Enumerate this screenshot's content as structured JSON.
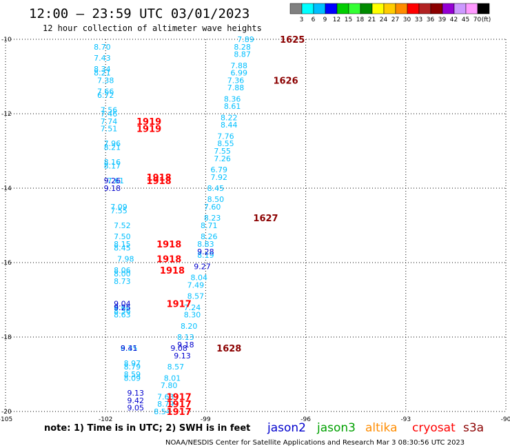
{
  "header": {
    "title": "12:00 – 23:59 UTC 03/01/2023",
    "subtitle": "12 hour collection of altimeter wave heights"
  },
  "colorbar": {
    "colors": [
      "#808080",
      "#00ffff",
      "#00bfff",
      "#0000ff",
      "#00cd00",
      "#33ff33",
      "#008b00",
      "#ffff00",
      "#ffcc00",
      "#ff8c00",
      "#ff0000",
      "#b22222",
      "#8b0000",
      "#9400d3",
      "#cc99ff",
      "#ff99ff",
      "#000000"
    ],
    "labels": [
      "3",
      "6",
      "9",
      "12",
      "15",
      "18",
      "21",
      "24",
      "27",
      "30",
      "33",
      "36",
      "39",
      "42",
      "45",
      "70",
      "(ft)"
    ]
  },
  "footer": {
    "note": "note:  1) Time is in UTC; 2) SWH is in feet",
    "credit": "NOAA/NESDIS Center for Satellite Applications and Research   Mar  3 08:30:56 UTC 2023"
  },
  "satellites": [
    {
      "name": "jason2",
      "color": "#0000cd"
    },
    {
      "name": "jason3",
      "color": "#00a000"
    },
    {
      "name": "altika",
      "color": "#ff8c00"
    },
    {
      "name": "cryosat",
      "color": "#ff0000"
    },
    {
      "name": "s3a",
      "color": "#8b0000"
    }
  ],
  "chart_data": {
    "type": "scatter",
    "title": "12:00 – 23:59 UTC 03/01/2023",
    "subtitle": "12 hour collection of altimeter wave heights",
    "xlim": [
      -105,
      -90
    ],
    "ylim": [
      -20,
      -10
    ],
    "x_ticks": [
      "-105",
      "-102",
      "-99",
      "-96",
      "-93",
      "-90"
    ],
    "y_ticks": [
      "-10",
      "-12",
      "-14",
      "-16",
      "-18",
      "-20"
    ],
    "grid": true,
    "series": [
      {
        "name": "s3a",
        "color": "#00bfff",
        "points": [
          [
            -97.8,
            -10.0,
            "7.89"
          ],
          [
            -97.9,
            -10.2,
            "8.28"
          ],
          [
            -97.9,
            -10.4,
            "8.87"
          ],
          [
            -98.0,
            -10.7,
            "7.88"
          ],
          [
            -98.0,
            -10.9,
            "6.99"
          ],
          [
            -98.1,
            -11.1,
            "7.36"
          ],
          [
            -98.1,
            -11.3,
            "7.88"
          ],
          [
            -98.2,
            -11.6,
            "8.36"
          ],
          [
            -98.2,
            -11.8,
            "8.61"
          ],
          [
            -98.3,
            -12.1,
            "8.22"
          ],
          [
            -98.3,
            -12.3,
            "8.44"
          ],
          [
            -98.4,
            -12.6,
            "7.76"
          ],
          [
            -98.4,
            -12.8,
            "8.55"
          ],
          [
            -98.5,
            -13.0,
            "7.55"
          ],
          [
            -98.5,
            -13.2,
            "7.26"
          ],
          [
            -98.6,
            -13.5,
            "6.79"
          ],
          [
            -98.6,
            -13.7,
            "7.92"
          ],
          [
            -98.7,
            -14.0,
            "8.45"
          ],
          [
            -98.7,
            -14.3,
            "8.50"
          ],
          [
            -98.8,
            -14.5,
            "7.60"
          ],
          [
            -98.8,
            -14.8,
            "8.23"
          ],
          [
            -98.9,
            -15.0,
            "8.71"
          ],
          [
            -98.9,
            -15.3,
            "8.26"
          ],
          [
            -99.0,
            -15.5,
            "8.83"
          ],
          [
            -99.0,
            -15.8,
            "8.19"
          ],
          [
            -99.2,
            -16.4,
            "8.04"
          ],
          [
            -99.3,
            -16.6,
            "7.49"
          ],
          [
            -99.3,
            -16.9,
            "8.57"
          ],
          [
            -99.4,
            -17.2,
            "7.24"
          ],
          [
            -99.4,
            -17.4,
            "8.30"
          ],
          [
            -99.5,
            -17.7,
            "8.20"
          ],
          [
            -99.6,
            -18.0,
            "8.13"
          ],
          [
            -99.9,
            -18.8,
            "8.57"
          ],
          [
            -100.0,
            -19.1,
            "8.01"
          ],
          [
            -100.1,
            -19.3,
            "7.80"
          ],
          [
            -100.2,
            -19.6,
            "7.63"
          ],
          [
            -100.2,
            -19.8,
            "8.79"
          ],
          [
            -100.3,
            -20.0,
            "8.54"
          ]
        ]
      },
      {
        "name": "jason3",
        "color": "#00bfff",
        "points": [
          [
            -102.1,
            -10.2,
            "8.70"
          ],
          [
            -102.1,
            -10.5,
            "7.43"
          ],
          [
            -102.1,
            -10.8,
            "8.34"
          ],
          [
            -102.1,
            -10.9,
            "8.21"
          ],
          [
            -102.0,
            -11.1,
            "7.38"
          ],
          [
            -102.0,
            -11.4,
            "7.66"
          ],
          [
            -102.0,
            -11.5,
            "6.72"
          ],
          [
            -101.9,
            -11.9,
            "7.56"
          ],
          [
            -101.9,
            -12.0,
            "7.46"
          ],
          [
            -101.9,
            -12.2,
            "7.74"
          ],
          [
            -101.9,
            -12.4,
            "7.51"
          ],
          [
            -101.8,
            -12.8,
            "7.96"
          ],
          [
            -101.8,
            -12.9,
            "8.21"
          ],
          [
            -101.8,
            -13.3,
            "8.16"
          ],
          [
            -101.8,
            -13.4,
            "8.17"
          ],
          [
            -101.7,
            -13.8,
            "7.61"
          ],
          [
            -101.6,
            -14.5,
            "7.09"
          ],
          [
            -101.6,
            -14.6,
            "7.55"
          ],
          [
            -101.5,
            -15.0,
            "7.52"
          ],
          [
            -101.5,
            -15.3,
            "7.50"
          ],
          [
            -101.5,
            -15.5,
            "8.15"
          ],
          [
            -101.5,
            -15.6,
            "8.45"
          ],
          [
            -101.4,
            -15.9,
            "7.98"
          ],
          [
            -101.5,
            -16.2,
            "8.06"
          ],
          [
            -101.5,
            -16.3,
            "8.00"
          ],
          [
            -101.5,
            -16.5,
            "8.73"
          ],
          [
            -101.5,
            -17.2,
            "8.66"
          ],
          [
            -101.5,
            -17.3,
            "8.56"
          ],
          [
            -101.5,
            -17.4,
            "8.63"
          ],
          [
            -101.3,
            -18.3,
            "8.35"
          ],
          [
            -101.2,
            -18.7,
            "8.97"
          ],
          [
            -101.2,
            -18.8,
            "8.79"
          ],
          [
            -101.2,
            -19.0,
            "8.59"
          ],
          [
            -101.2,
            -19.1,
            "8.09"
          ]
        ]
      },
      {
        "name": "jason2",
        "color": "#0000cd",
        "points": [
          [
            -101.8,
            -13.8,
            "9.26"
          ],
          [
            -101.8,
            -14.0,
            "9.18"
          ],
          [
            -99.0,
            -15.7,
            "9.28"
          ],
          [
            -99.1,
            -16.1,
            "9.27"
          ],
          [
            -99.6,
            -18.2,
            "9.18"
          ],
          [
            -99.8,
            -18.3,
            "9.08"
          ],
          [
            -99.7,
            -18.5,
            "9.13"
          ],
          [
            -101.5,
            -17.1,
            "9.04"
          ],
          [
            -101.5,
            -17.2,
            "9.25"
          ],
          [
            -101.3,
            -18.3,
            "9.41"
          ],
          [
            -101.1,
            -19.5,
            "9.13"
          ],
          [
            -101.1,
            -19.7,
            "9.42"
          ],
          [
            -101.1,
            -19.9,
            "9.05"
          ]
        ]
      }
    ],
    "time_labels": [
      {
        "x": -96.4,
        "y": -10.0,
        "text": "1625",
        "color": "#8b0000"
      },
      {
        "x": -96.6,
        "y": -11.1,
        "text": "1626",
        "color": "#8b0000"
      },
      {
        "x": -97.2,
        "y": -14.8,
        "text": "1627",
        "color": "#8b0000"
      },
      {
        "x": -98.3,
        "y": -18.3,
        "text": "1628",
        "color": "#8b0000"
      },
      {
        "x": -100.7,
        "y": -12.2,
        "text": "1919",
        "color": "#ff0000"
      },
      {
        "x": -100.7,
        "y": -12.4,
        "text": "1919",
        "color": "#ff0000"
      },
      {
        "x": -100.4,
        "y": -13.7,
        "text": "1918",
        "color": "#ff0000"
      },
      {
        "x": -100.4,
        "y": -13.8,
        "text": "1918",
        "color": "#ff0000"
      },
      {
        "x": -100.1,
        "y": -15.5,
        "text": "1918",
        "color": "#ff0000"
      },
      {
        "x": -100.1,
        "y": -15.9,
        "text": "1918",
        "color": "#ff0000"
      },
      {
        "x": -100.0,
        "y": -16.2,
        "text": "1918",
        "color": "#ff0000"
      },
      {
        "x": -99.8,
        "y": -17.1,
        "text": "1917",
        "color": "#ff0000"
      },
      {
        "x": -99.8,
        "y": -19.6,
        "text": "1917",
        "color": "#ff0000"
      },
      {
        "x": -99.8,
        "y": -19.8,
        "text": "1917",
        "color": "#ff0000"
      },
      {
        "x": -99.8,
        "y": -20.0,
        "text": "1917",
        "color": "#ff0000"
      }
    ]
  }
}
